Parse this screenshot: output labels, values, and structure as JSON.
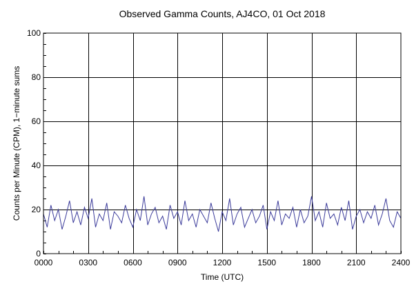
{
  "chart_data": {
    "type": "line",
    "title": "Observed Gamma Counts, AJ4CO, 01 Oct 2018",
    "xlabel": "Time (UTC)",
    "ylabel": "Counts per Minute (CPM), 1−minute sums",
    "xlim": [
      0,
      1440
    ],
    "ylim": [
      0,
      100
    ],
    "x_ticks": [
      {
        "value": 0,
        "label": "0000"
      },
      {
        "value": 180,
        "label": "0300"
      },
      {
        "value": 360,
        "label": "0600"
      },
      {
        "value": 540,
        "label": "0900"
      },
      {
        "value": 720,
        "label": "1200"
      },
      {
        "value": 900,
        "label": "1500"
      },
      {
        "value": 1080,
        "label": "1800"
      },
      {
        "value": 1260,
        "label": "2100"
      },
      {
        "value": 1440,
        "label": "2400"
      }
    ],
    "y_ticks": [
      {
        "value": 0,
        "label": "0"
      },
      {
        "value": 20,
        "label": "20"
      },
      {
        "value": 40,
        "label": "40"
      },
      {
        "value": 60,
        "label": "60"
      },
      {
        "value": 80,
        "label": "80"
      },
      {
        "value": 100,
        "label": "100"
      }
    ],
    "grid": true,
    "series": [
      {
        "color": "#3a3a9a",
        "x_unit": "minutes after 0000 UTC",
        "x": [
          0,
          15,
          30,
          45,
          60,
          75,
          90,
          105,
          120,
          135,
          150,
          165,
          180,
          195,
          210,
          225,
          240,
          255,
          270,
          285,
          300,
          315,
          330,
          345,
          360,
          375,
          390,
          405,
          420,
          435,
          450,
          465,
          480,
          495,
          510,
          525,
          540,
          555,
          570,
          585,
          600,
          615,
          630,
          645,
          660,
          675,
          690,
          705,
          720,
          735,
          750,
          765,
          780,
          795,
          810,
          825,
          840,
          855,
          870,
          885,
          900,
          915,
          930,
          945,
          960,
          975,
          990,
          1005,
          1020,
          1035,
          1050,
          1065,
          1080,
          1095,
          1110,
          1125,
          1140,
          1155,
          1170,
          1185,
          1200,
          1215,
          1230,
          1245,
          1260,
          1275,
          1290,
          1305,
          1320,
          1335,
          1350,
          1365,
          1380,
          1395,
          1410,
          1425,
          1440
        ],
        "values": [
          18,
          12,
          22,
          15,
          20,
          11,
          17,
          24,
          14,
          19,
          13,
          21,
          16,
          25,
          12,
          18,
          15,
          23,
          11,
          19,
          17,
          14,
          22,
          16,
          12,
          20,
          15,
          26,
          13,
          18,
          21,
          14,
          17,
          11,
          22,
          16,
          19,
          13,
          24,
          15,
          18,
          12,
          20,
          17,
          14,
          23,
          16,
          10,
          19,
          15,
          25,
          13,
          18,
          21,
          12,
          16,
          20,
          14,
          17,
          22,
          11,
          19,
          15,
          24,
          13,
          18,
          16,
          21,
          12,
          20,
          14,
          17,
          26,
          15,
          19,
          12,
          23,
          16,
          18,
          13,
          21,
          15,
          24,
          11,
          17,
          20,
          14,
          19,
          16,
          22,
          13,
          18,
          25,
          15,
          12,
          19,
          16
        ]
      }
    ]
  }
}
